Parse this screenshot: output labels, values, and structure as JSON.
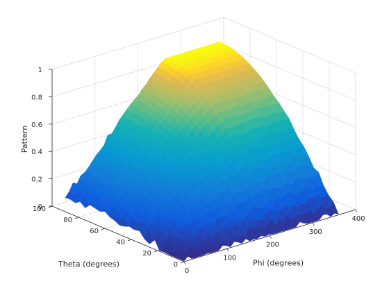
{
  "chart_data": {
    "type": "surface",
    "title": "",
    "xlabel": "Phi (degrees)",
    "ylabel": "Theta (degrees)",
    "zlabel": "Pattern",
    "xlim": [
      0,
      400
    ],
    "ylim": [
      0,
      100
    ],
    "zlim": [
      0,
      1
    ],
    "xticks": [
      "0",
      "100",
      "200",
      "300",
      "400"
    ],
    "yticks": [
      "0",
      "20",
      "40",
      "60",
      "80",
      "100"
    ],
    "zticks": [
      "0",
      "0.2",
      "0.4",
      "0.6",
      "0.8",
      "1"
    ],
    "grid": true,
    "colormap": "parula",
    "phi_range": [
      0,
      360
    ],
    "theta_range": [
      0,
      90
    ],
    "pattern_peak": 0.9,
    "pattern_model": "pattern rises with theta toward the peak; noisy near low values"
  }
}
